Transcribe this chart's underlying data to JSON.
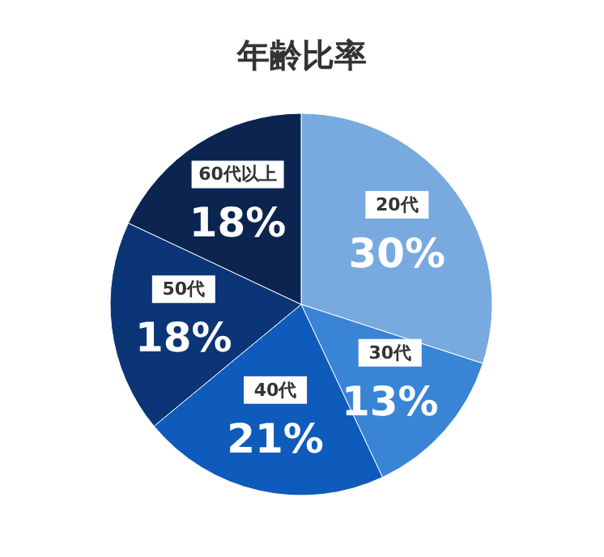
{
  "chart_data": {
    "type": "pie",
    "title": "年齢比率",
    "categories": [
      "20代",
      "30代",
      "40代",
      "50代",
      "60代以上"
    ],
    "values": [
      30,
      13,
      21,
      18,
      18
    ],
    "colors": [
      "#78aadf",
      "#3a84d6",
      "#0e5bbb",
      "#0b3577",
      "#0b2550"
    ],
    "value_labels": [
      "30%",
      "13%",
      "21%",
      "18%",
      "18%"
    ],
    "legend": false
  }
}
